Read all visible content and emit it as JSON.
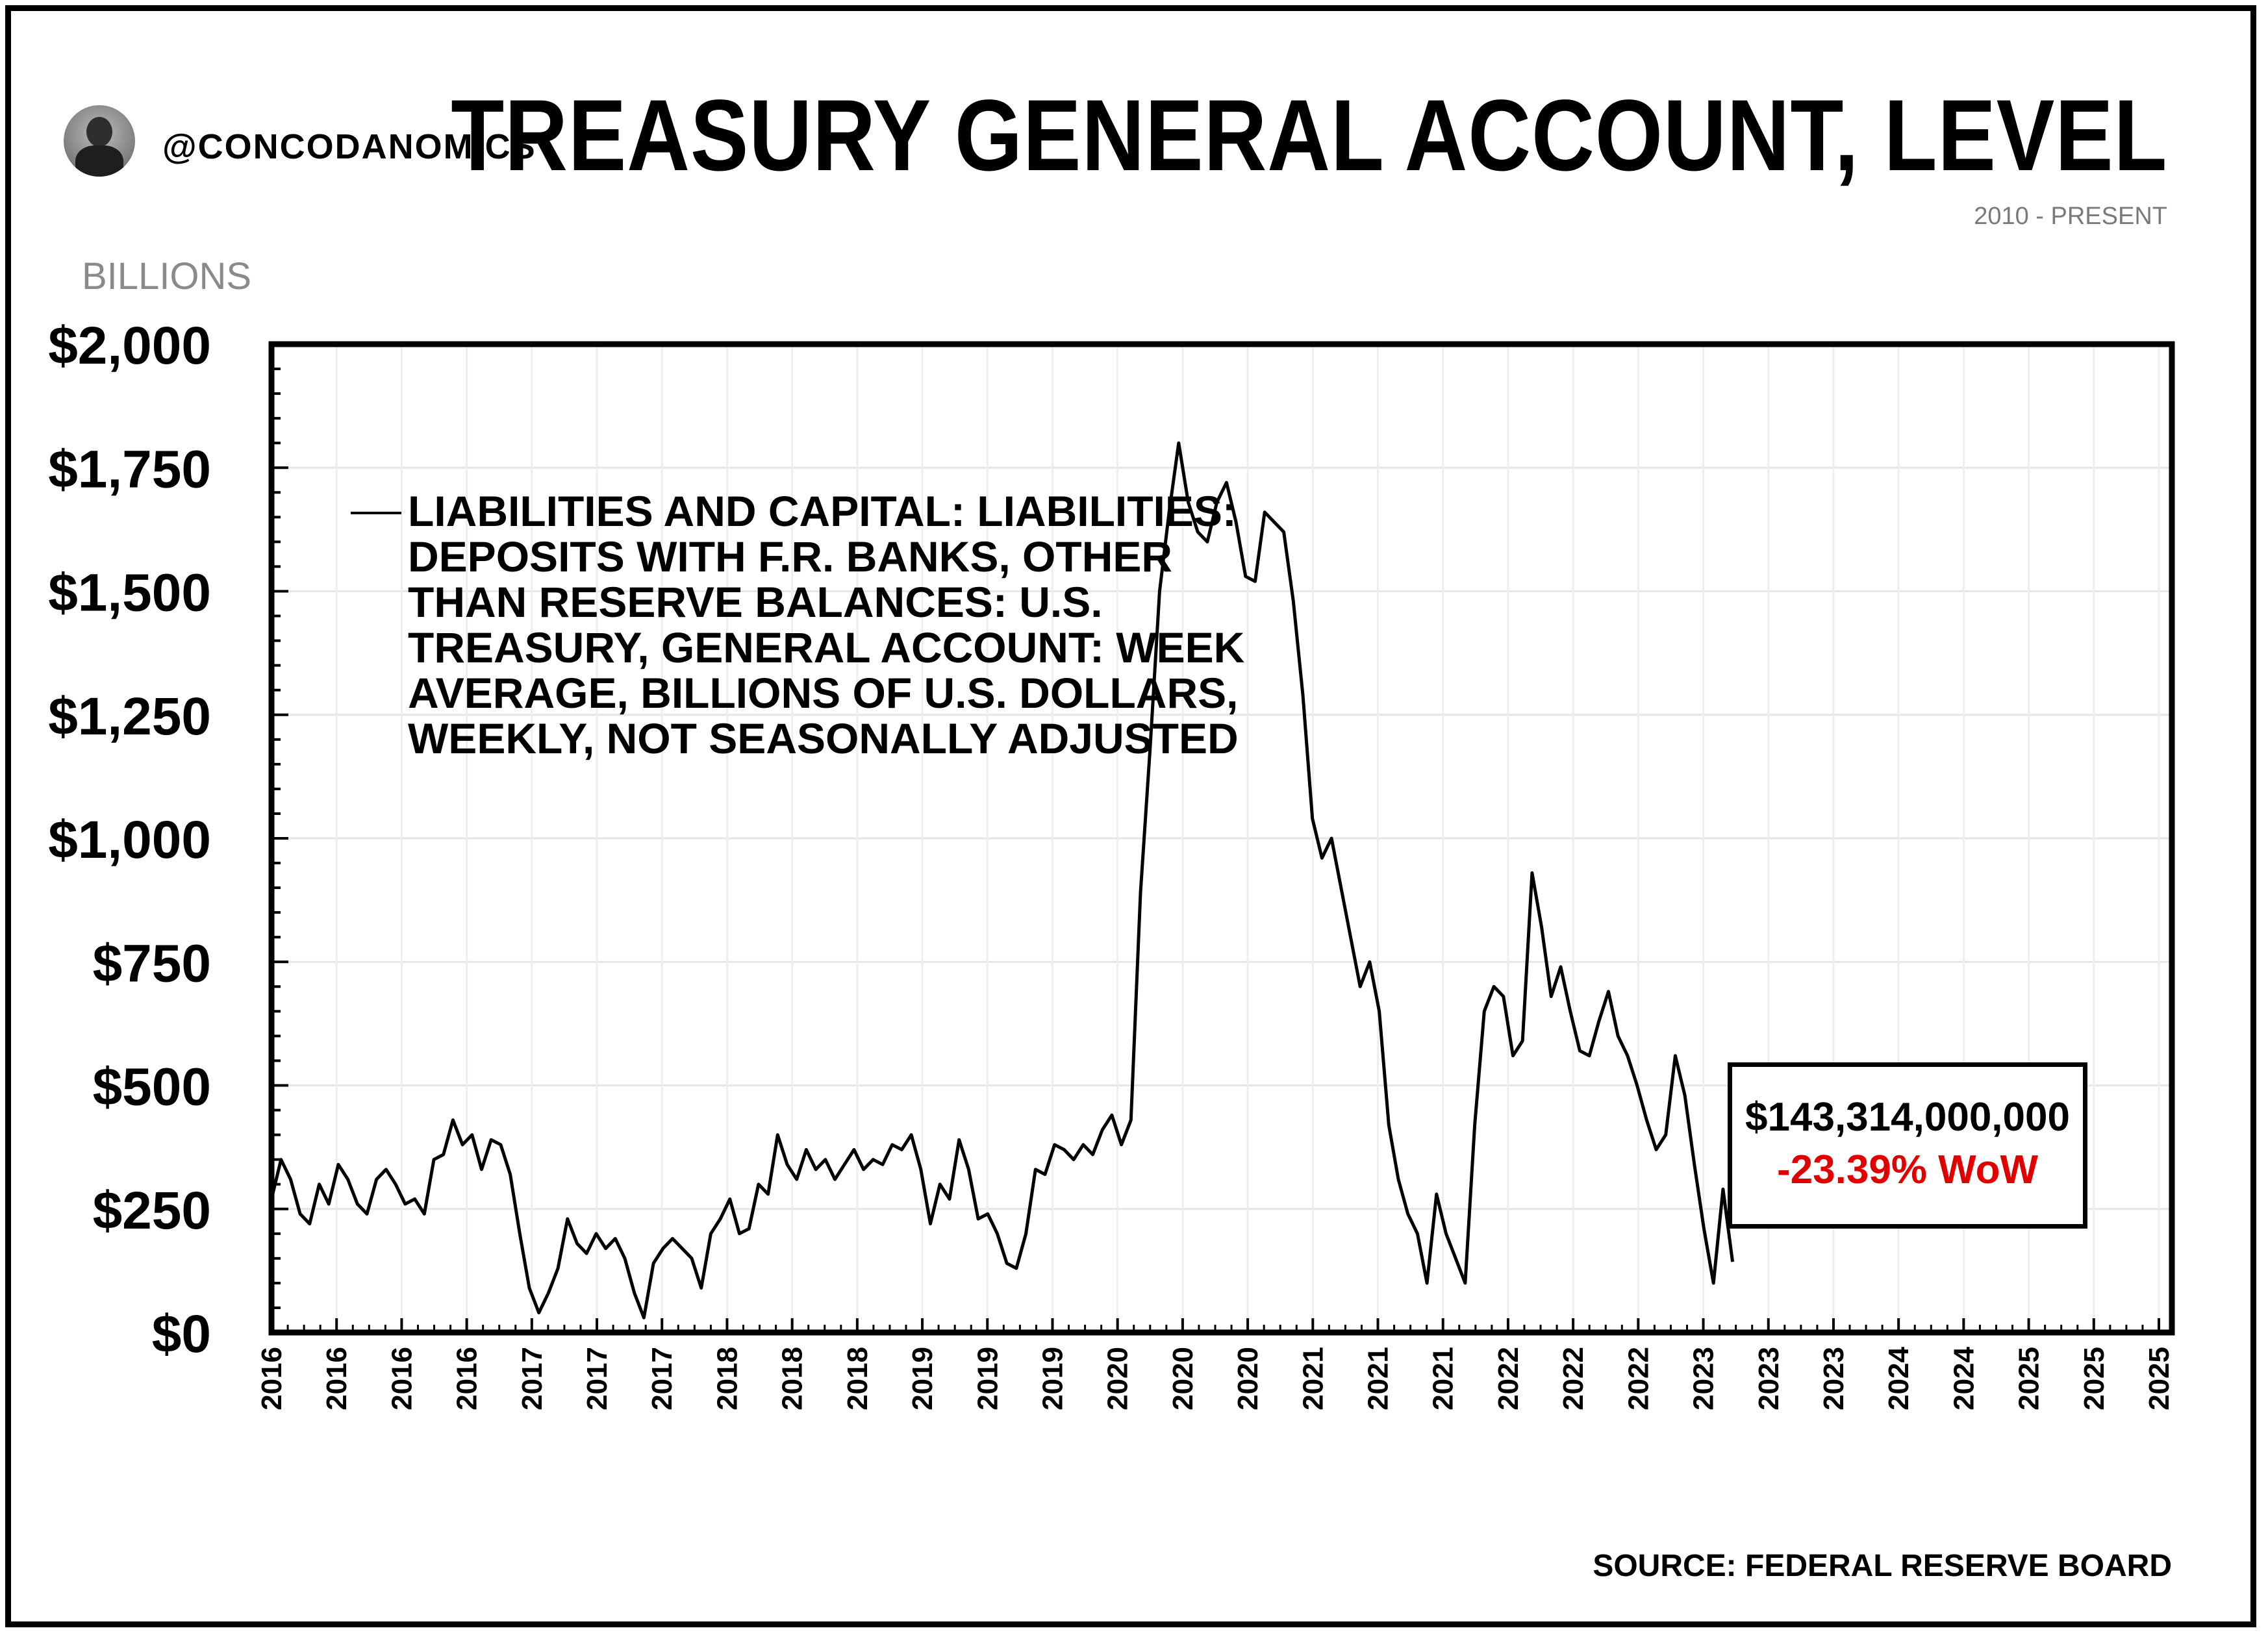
{
  "header": {
    "handle": "@CONCODANOMICS",
    "title": "TREASURY GENERAL ACCOUNT, LEVEL",
    "subtitle": "2010 - PRESENT",
    "unit_label": "BILLIONS"
  },
  "callout": {
    "value": "$143,314,000,000",
    "change": "-23.39% WoW",
    "change_color": "#e00000"
  },
  "source": "SOURCE: FEDERAL RESERVE BOARD",
  "chart_data": {
    "type": "line",
    "ylim": [
      0,
      2000
    ],
    "y_ticks": [
      0,
      250,
      500,
      750,
      1000,
      1250,
      1500,
      1750,
      2000
    ],
    "y_tick_labels": [
      "$0",
      "$250",
      "$500",
      "$750",
      "$1,000",
      "$1,250",
      "$1,500",
      "$1,750",
      "$2,000"
    ],
    "xlim": [
      2016.0,
      2025.95
    ],
    "x_tick_labels": [
      "2016",
      "2016",
      "2016",
      "2016",
      "2017",
      "2017",
      "2017",
      "2018",
      "2018",
      "2018",
      "2019",
      "2019",
      "2019",
      "2020",
      "2020",
      "2020",
      "2021",
      "2021",
      "2021",
      "2022",
      "2022",
      "2022",
      "2023",
      "2023",
      "2023",
      "2024",
      "2024",
      "2025",
      "2025",
      "2025"
    ],
    "grid": true,
    "legend_position": "top-left",
    "series": [
      {
        "name": "LIABILITIES AND CAPITAL: LIABILITIES: DEPOSITS WITH F.R. BANKS, OTHER THAN RESERVE BALANCES: U.S. TREASURY, GENERAL ACCOUNT: WEEK AVERAGE, BILLIONS OF U.S. DOLLARS, WEEKLY, NOT SEASONALLY ADJUSTED",
        "legend_lines": [
          "LIABILITIES AND CAPITAL: LIABILITIES:",
          "DEPOSITS WITH F.R. BANKS, OTHER",
          "THAN RESERVE BALANCES: U.S.",
          "TREASURY, GENERAL ACCOUNT: WEEK",
          "AVERAGE, BILLIONS OF U.S. DOLLARS,",
          "WEEKLY, NOT SEASONALLY ADJUSTED"
        ],
        "color": "#000000",
        "points": [
          [
            2016.0,
            270
          ],
          [
            2016.05,
            350
          ],
          [
            2016.1,
            310
          ],
          [
            2016.15,
            240
          ],
          [
            2016.2,
            220
          ],
          [
            2016.25,
            300
          ],
          [
            2016.3,
            260
          ],
          [
            2016.35,
            340
          ],
          [
            2016.4,
            310
          ],
          [
            2016.45,
            260
          ],
          [
            2016.5,
            240
          ],
          [
            2016.55,
            310
          ],
          [
            2016.6,
            330
          ],
          [
            2016.65,
            300
          ],
          [
            2016.7,
            260
          ],
          [
            2016.75,
            270
          ],
          [
            2016.8,
            240
          ],
          [
            2016.85,
            350
          ],
          [
            2016.9,
            360
          ],
          [
            2016.95,
            430
          ],
          [
            2017.0,
            380
          ],
          [
            2017.05,
            400
          ],
          [
            2017.1,
            330
          ],
          [
            2017.15,
            390
          ],
          [
            2017.2,
            380
          ],
          [
            2017.25,
            320
          ],
          [
            2017.3,
            200
          ],
          [
            2017.35,
            90
          ],
          [
            2017.4,
            40
          ],
          [
            2017.45,
            80
          ],
          [
            2017.5,
            130
          ],
          [
            2017.55,
            230
          ],
          [
            2017.6,
            180
          ],
          [
            2017.65,
            160
          ],
          [
            2017.7,
            200
          ],
          [
            2017.75,
            170
          ],
          [
            2017.8,
            190
          ],
          [
            2017.85,
            150
          ],
          [
            2017.9,
            80
          ],
          [
            2017.95,
            30
          ],
          [
            2018.0,
            140
          ],
          [
            2018.05,
            170
          ],
          [
            2018.1,
            190
          ],
          [
            2018.15,
            170
          ],
          [
            2018.2,
            150
          ],
          [
            2018.25,
            90
          ],
          [
            2018.3,
            200
          ],
          [
            2018.35,
            230
          ],
          [
            2018.4,
            270
          ],
          [
            2018.45,
            200
          ],
          [
            2018.5,
            210
          ],
          [
            2018.55,
            300
          ],
          [
            2018.6,
            280
          ],
          [
            2018.65,
            400
          ],
          [
            2018.7,
            340
          ],
          [
            2018.75,
            310
          ],
          [
            2018.8,
            370
          ],
          [
            2018.85,
            330
          ],
          [
            2018.9,
            350
          ],
          [
            2018.95,
            310
          ],
          [
            2019.0,
            340
          ],
          [
            2019.05,
            370
          ],
          [
            2019.1,
            330
          ],
          [
            2019.15,
            350
          ],
          [
            2019.2,
            340
          ],
          [
            2019.25,
            380
          ],
          [
            2019.3,
            370
          ],
          [
            2019.35,
            400
          ],
          [
            2019.4,
            330
          ],
          [
            2019.45,
            220
          ],
          [
            2019.5,
            300
          ],
          [
            2019.55,
            270
          ],
          [
            2019.6,
            390
          ],
          [
            2019.65,
            330
          ],
          [
            2019.7,
            230
          ],
          [
            2019.75,
            240
          ],
          [
            2019.8,
            200
          ],
          [
            2019.85,
            140
          ],
          [
            2019.9,
            130
          ],
          [
            2019.95,
            200
          ],
          [
            2020.0,
            330
          ],
          [
            2020.05,
            320
          ],
          [
            2020.1,
            380
          ],
          [
            2020.15,
            370
          ],
          [
            2020.2,
            350
          ],
          [
            2020.25,
            380
          ],
          [
            2020.3,
            360
          ],
          [
            2020.35,
            410
          ],
          [
            2020.4,
            440
          ],
          [
            2020.45,
            380
          ],
          [
            2020.5,
            430
          ],
          [
            2020.55,
            890
          ],
          [
            2020.6,
            1180
          ],
          [
            2020.65,
            1500
          ],
          [
            2020.7,
            1660
          ],
          [
            2020.75,
            1800
          ],
          [
            2020.8,
            1680
          ],
          [
            2020.85,
            1620
          ],
          [
            2020.9,
            1600
          ],
          [
            2020.95,
            1680
          ],
          [
            2021.0,
            1720
          ],
          [
            2021.05,
            1640
          ],
          [
            2021.1,
            1530
          ],
          [
            2021.15,
            1520
          ],
          [
            2021.2,
            1660
          ],
          [
            2021.25,
            1640
          ],
          [
            2021.3,
            1620
          ],
          [
            2021.35,
            1480
          ],
          [
            2021.4,
            1290
          ],
          [
            2021.45,
            1040
          ],
          [
            2021.5,
            960
          ],
          [
            2021.55,
            1000
          ],
          [
            2021.6,
            900
          ],
          [
            2021.65,
            800
          ],
          [
            2021.7,
            700
          ],
          [
            2021.75,
            750
          ],
          [
            2021.8,
            650
          ],
          [
            2021.85,
            420
          ],
          [
            2021.9,
            310
          ],
          [
            2021.95,
            240
          ],
          [
            2022.0,
            200
          ],
          [
            2022.05,
            100
          ],
          [
            2022.1,
            280
          ],
          [
            2022.15,
            200
          ],
          [
            2022.2,
            150
          ],
          [
            2022.25,
            100
          ],
          [
            2022.3,
            420
          ],
          [
            2022.35,
            650
          ],
          [
            2022.4,
            700
          ],
          [
            2022.45,
            680
          ],
          [
            2022.5,
            560
          ],
          [
            2022.55,
            590
          ],
          [
            2022.6,
            930
          ],
          [
            2022.65,
            820
          ],
          [
            2022.7,
            680
          ],
          [
            2022.75,
            740
          ],
          [
            2022.8,
            650
          ],
          [
            2022.85,
            570
          ],
          [
            2022.9,
            560
          ],
          [
            2022.95,
            630
          ],
          [
            2023.0,
            690
          ],
          [
            2023.05,
            600
          ],
          [
            2023.1,
            560
          ],
          [
            2023.15,
            500
          ],
          [
            2023.2,
            430
          ],
          [
            2023.25,
            370
          ],
          [
            2023.3,
            400
          ],
          [
            2023.35,
            560
          ],
          [
            2023.4,
            480
          ],
          [
            2023.45,
            340
          ],
          [
            2023.5,
            210
          ],
          [
            2023.55,
            100
          ],
          [
            2023.6,
            290
          ],
          [
            2023.65,
            143
          ]
        ]
      }
    ]
  }
}
